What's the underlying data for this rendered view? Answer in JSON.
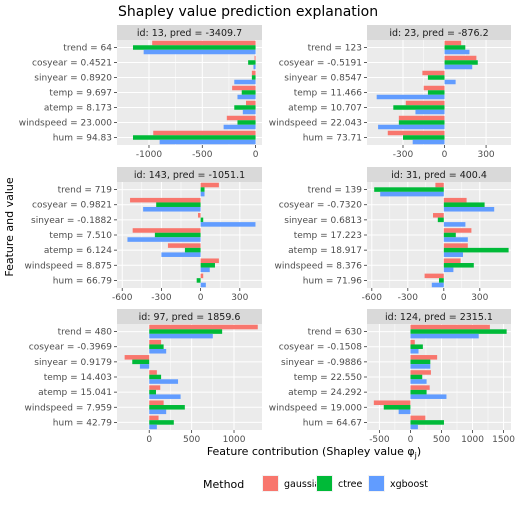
{
  "figure": {
    "title": "Shapley value prediction explanation",
    "xlabel_prefix": "Feature contribution (Shapley value φ",
    "xlabel_sub": "j",
    "xlabel_suffix": ")",
    "ylabel": "Feature and value",
    "legend_title": "Method"
  },
  "chart_data": {
    "type": "bar",
    "orientation": "horizontal",
    "grid": true,
    "legend": "bottom",
    "methods": [
      {
        "name": "gaussian",
        "color": "#F8766D"
      },
      {
        "name": "ctree",
        "color": "#00BA38"
      },
      {
        "name": "xgboost",
        "color": "#619CFF"
      }
    ],
    "panels": [
      {
        "strip": "id: 13, pred = -3409.7",
        "xlim": [
          -1300,
          60
        ],
        "xticks": [
          -1000,
          -500,
          0
        ],
        "xtick_labels": [
          "-1000",
          "-500",
          "0"
        ],
        "features": [
          {
            "label": "trend = 64",
            "values": [
              -970,
              -1150,
              -1050
            ]
          },
          {
            "label": "cosyear = 0.4521",
            "values": [
              -10,
              -70,
              -20
            ]
          },
          {
            "label": "sinyear = 0.8920",
            "values": [
              -35,
              -35,
              -200
            ]
          },
          {
            "label": "temp = 9.697",
            "values": [
              -220,
              -130,
              -170
            ]
          },
          {
            "label": "atemp = 8.173",
            "values": [
              -90,
              -200,
              -120
            ]
          },
          {
            "label": "windspeed = 23.000",
            "values": [
              -270,
              -170,
              -300
            ]
          },
          {
            "label": "hum = 94.83",
            "values": [
              -960,
              -1150,
              -900
            ]
          }
        ]
      },
      {
        "strip": "id: 23, pred =  -876.2",
        "xlim": [
          -560,
          480
        ],
        "xticks": [
          -300,
          0,
          300
        ],
        "xtick_labels": [
          "-300",
          "0",
          "300"
        ],
        "features": [
          {
            "label": "trend = 123",
            "values": [
              120,
              150,
              180
            ]
          },
          {
            "label": "cosyear = -0.5191",
            "values": [
              230,
              240,
              200
            ]
          },
          {
            "label": "sinyear = 0.8547",
            "values": [
              -160,
              -120,
              80
            ]
          },
          {
            "label": "temp = 11.466",
            "values": [
              -150,
              -120,
              -490
            ]
          },
          {
            "label": "atemp = 10.707",
            "values": [
              -280,
              -370,
              -210
            ]
          },
          {
            "label": "windspeed = 22.043",
            "values": [
              -330,
              -330,
              -480
            ]
          },
          {
            "label": "hum = 73.71",
            "values": [
              -410,
              -300,
              -230
            ]
          }
        ]
      },
      {
        "strip": "id: 143, pred = -1051.1",
        "xlim": [
          -640,
          470
        ],
        "xticks": [
          -600,
          -300,
          0,
          300
        ],
        "xtick_labels": [
          "-600",
          "-300",
          "0",
          "300"
        ],
        "features": [
          {
            "label": "trend = 719",
            "values": [
              140,
              30,
              30
            ]
          },
          {
            "label": "cosyear = 0.9821",
            "values": [
              -540,
              -340,
              -440
            ]
          },
          {
            "label": "sinyear = -0.1882",
            "values": [
              -20,
              20,
              420
            ]
          },
          {
            "label": "temp = 7.510",
            "values": [
              -520,
              -350,
              -560
            ]
          },
          {
            "label": "atemp = 6.124",
            "values": [
              -250,
              -120,
              -300
            ]
          },
          {
            "label": "windspeed = 8.875",
            "values": [
              140,
              110,
              70
            ]
          },
          {
            "label": "hum = 66.79",
            "values": [
              20,
              -30,
              40
            ]
          }
        ]
      },
      {
        "strip": "id: 31, pred =  400.4",
        "xlim": [
          -640,
          560
        ],
        "xticks": [
          -600,
          -300,
          0,
          300
        ],
        "xtick_labels": [
          "-600",
          "-300",
          "0",
          "300"
        ],
        "features": [
          {
            "label": "trend = 139",
            "values": [
              -70,
              -580,
              -530
            ]
          },
          {
            "label": "cosyear = -0.7320",
            "values": [
              190,
              340,
              420
            ]
          },
          {
            "label": "sinyear = 0.6813",
            "values": [
              -90,
              -50,
              180
            ]
          },
          {
            "label": "temp = 17.223",
            "values": [
              230,
              100,
              200
            ]
          },
          {
            "label": "atemp = 18.917",
            "values": [
              200,
              540,
              160
            ]
          },
          {
            "label": "windspeed = 8.376",
            "values": [
              140,
              250,
              80
            ]
          },
          {
            "label": "hum = 71.96",
            "values": [
              -160,
              -40,
              -100
            ]
          }
        ]
      },
      {
        "strip": "id: 97, pred =  1859.6",
        "xlim": [
          -380,
          1330
        ],
        "xticks": [
          0,
          500,
          1000
        ],
        "xtick_labels": [
          "0",
          "500",
          "1000"
        ],
        "features": [
          {
            "label": "trend = 480",
            "values": [
              1280,
              860,
              750
            ]
          },
          {
            "label": "cosyear = -0.3969",
            "values": [
              140,
              170,
              200
            ]
          },
          {
            "label": "sinyear = 0.9179",
            "values": [
              -290,
              -200,
              -110
            ]
          },
          {
            "label": "temp = 14.403",
            "values": [
              90,
              140,
              340
            ]
          },
          {
            "label": "atemp = 15.041",
            "values": [
              130,
              80,
              370
            ]
          },
          {
            "label": "windspeed = 7.959",
            "values": [
              170,
              420,
              200
            ]
          },
          {
            "label": "hum = 42.79",
            "values": [
              110,
              290,
              90
            ]
          }
        ]
      },
      {
        "strip": "id: 124, pred =  2315.1",
        "xlim": [
          -700,
          1620
        ],
        "xticks": [
          -500,
          0,
          500,
          1000,
          1500
        ],
        "xtick_labels": [
          "-500",
          "0",
          "500",
          "1000",
          "1500"
        ],
        "features": [
          {
            "label": "trend = 630",
            "values": [
              1280,
              1550,
              1100
            ]
          },
          {
            "label": "cosyear = -0.1508",
            "values": [
              70,
              200,
              130
            ]
          },
          {
            "label": "sinyear = -0.9886",
            "values": [
              430,
              320,
              320
            ]
          },
          {
            "label": "temp = 22.550",
            "values": [
              330,
              190,
              260
            ]
          },
          {
            "label": "atemp = 24.292",
            "values": [
              310,
              260,
              580
            ]
          },
          {
            "label": "windspeed = 19.000",
            "values": [
              -590,
              -430,
              -190
            ]
          },
          {
            "label": "hum = 64.67",
            "values": [
              240,
              540,
              120
            ]
          }
        ]
      }
    ]
  }
}
